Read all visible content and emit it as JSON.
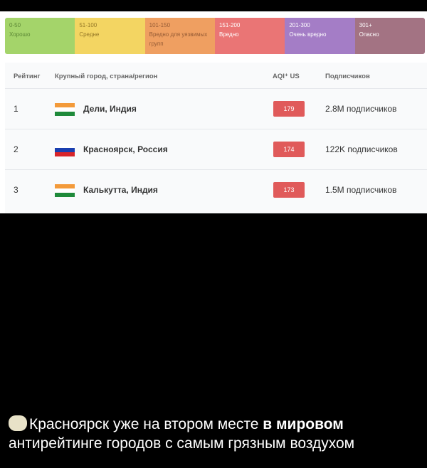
{
  "legend": [
    {
      "range": "0-50",
      "label": "Хорошо",
      "color": "#9bd05a",
      "text": "#4a7a20"
    },
    {
      "range": "51-100",
      "label": "Средне",
      "color": "#f2d152",
      "text": "#8a6a10"
    },
    {
      "range": "101-150",
      "label": "Вредно для уязвимых групп",
      "color": "#ee9550",
      "text": "#8a4a20"
    },
    {
      "range": "151-200",
      "label": "Вредно",
      "color": "#e86666",
      "text": "#fff"
    },
    {
      "range": "201-300",
      "label": "Очень вредно",
      "color": "#9b6fc0",
      "text": "#fff"
    },
    {
      "range": "301+",
      "label": "Опасно",
      "color": "#9a6476",
      "text": "#fff"
    }
  ],
  "table": {
    "headers": {
      "rank": "Рейтинг",
      "city": "Крупный город, страна/регион",
      "aqi": "AQI⁺ US",
      "subs": "Подписчиков"
    },
    "rows": [
      {
        "rank": "1",
        "flag": "india",
        "city": "Дели, Индия",
        "aqi": "179",
        "subs": "2.8M подписчиков"
      },
      {
        "rank": "2",
        "flag": "russia",
        "city": "Красноярск, Россия",
        "aqi": "174",
        "subs": "122K подписчиков"
      },
      {
        "rank": "3",
        "flag": "india",
        "city": "Калькутта, Индия",
        "aqi": "173",
        "subs": "1.5M подписчиков"
      }
    ]
  },
  "caption": {
    "icon": "cloud-face-emoji",
    "text_normal": "Красноярск уже на втором месте ",
    "text_bold": "в мировом",
    "line2": "антирейтинге городов с самым грязным воздухом"
  }
}
